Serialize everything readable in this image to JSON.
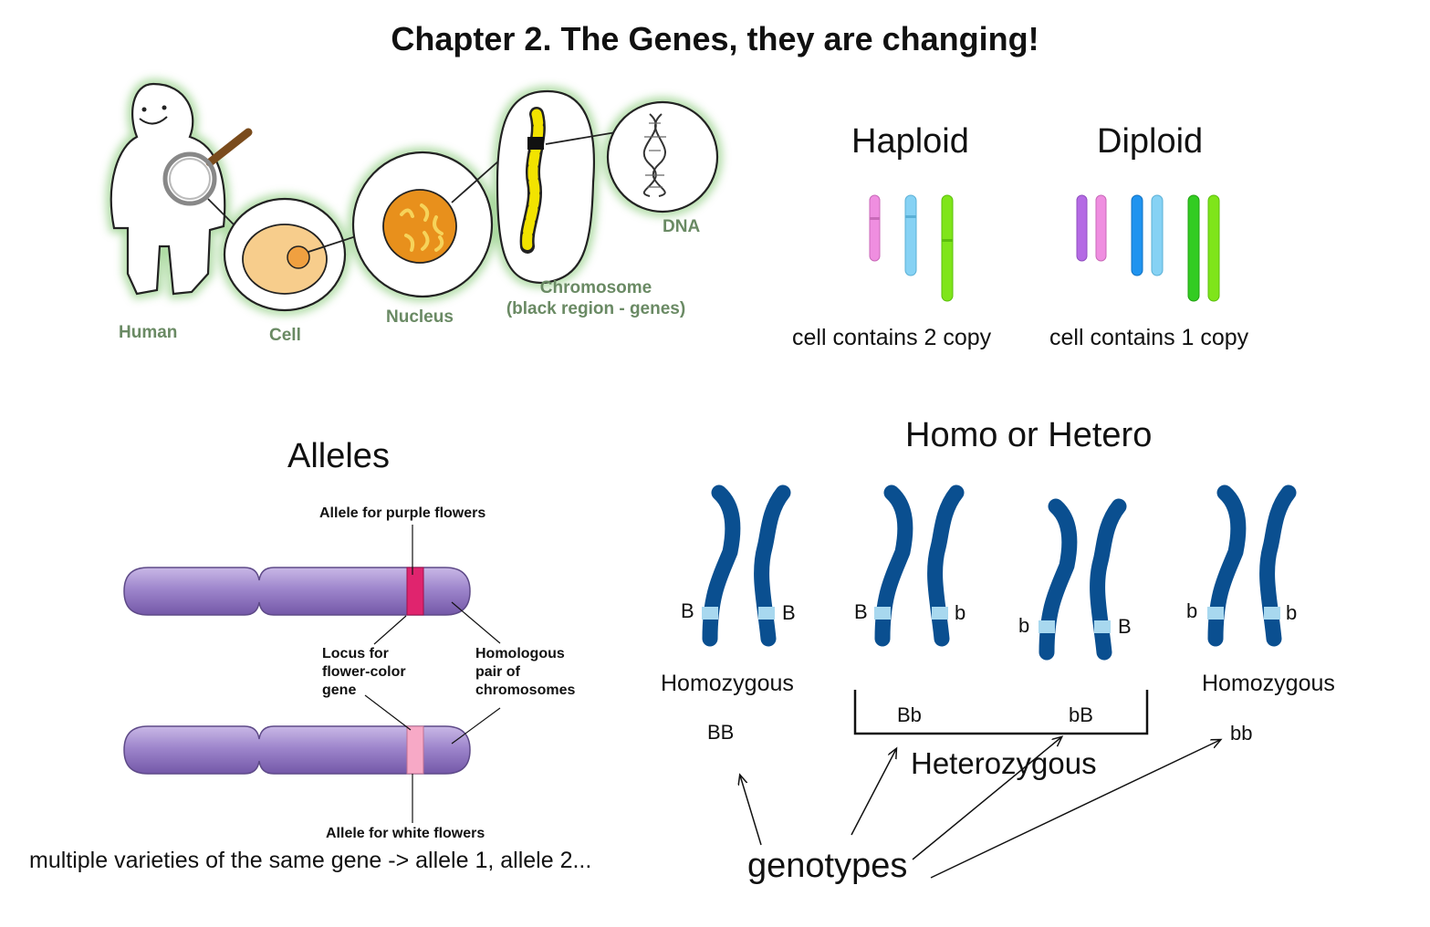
{
  "title": "Chapter 2. The Genes, they are changing!",
  "anatomy": {
    "labels": {
      "human": "Human",
      "cell": "Cell",
      "nucleus": "Nucleus",
      "chromosome": "Chromosome",
      "chromosome_note": "(black region - genes)",
      "dna": "DNA"
    }
  },
  "ploidy": {
    "haploid": {
      "heading": "Haploid",
      "caption": "cell contains 2 copy"
    },
    "diploid": {
      "heading": "Diploid",
      "caption": "cell contains 1 copy"
    },
    "colors": {
      "pink": "#ef8ee0",
      "light_blue": "#86d2f4",
      "lime": "#7fe51a",
      "purple": "#b46ae4",
      "blue": "#1f93ef",
      "green": "#33cc22"
    }
  },
  "alleles": {
    "heading": "Alleles",
    "purple_allele": "Allele for purple flowers",
    "locus_line1": "Locus for",
    "locus_line2": "flower-color",
    "locus_line3": "gene",
    "homologous_line1": "Homologous",
    "homologous_line2": "pair of",
    "homologous_line3": "chromosomes",
    "white_allele": "Allele for white flowers",
    "caption": "multiple varieties of the same gene -> allele 1, allele 2...",
    "colors": {
      "chromosome": "#9e86cc",
      "purple_band": "#e0246e",
      "white_band": "#f7a9c6"
    }
  },
  "zygosity": {
    "heading": "Homo or Hetero",
    "pairs": [
      {
        "left": "B",
        "right": "B"
      },
      {
        "left": "B",
        "right": "b"
      },
      {
        "left": "b",
        "right": "B"
      },
      {
        "left": "b",
        "right": "b"
      }
    ],
    "homozygous_left": "Homozygous",
    "homozygous_right": "Homozygous",
    "heterozygous": "Heterozygous",
    "genotype_BB": "BB",
    "genotype_Bb": "Bb",
    "genotype_bB": "bB",
    "genotype_bb": "bb",
    "genotypes_label": "genotypes",
    "colors": {
      "chromosome": "#0a4f90",
      "band": "#a8d8ef"
    }
  }
}
